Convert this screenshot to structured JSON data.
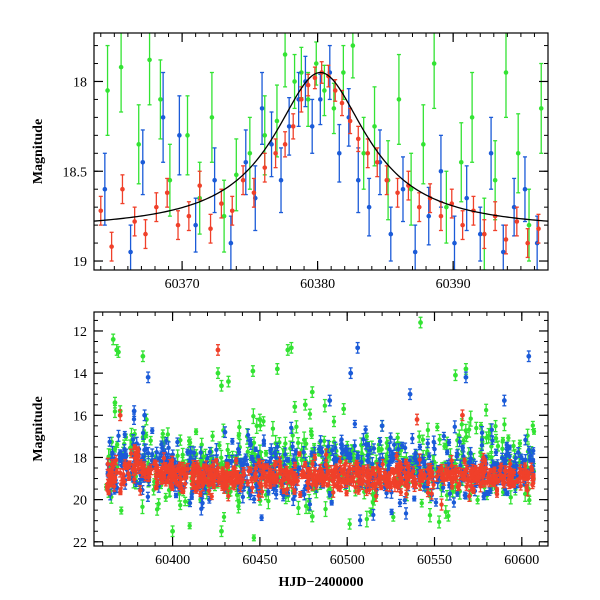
{
  "colors": {
    "green": "#33e333",
    "blue": "#1b5bd8",
    "red": "#f0402a",
    "model": "#000000"
  },
  "chart_data": [
    {
      "type": "scatter",
      "panel": "top",
      "title": "",
      "xlabel": "",
      "ylabel": "Magnitude",
      "xlim": [
        60363.5,
        60397
      ],
      "ylim": [
        19.05,
        17.73
      ],
      "y_inverted": true,
      "x_ticks": [
        60370,
        60380,
        60390
      ],
      "x_tick_labels": [
        "60370",
        "60380",
        "60390"
      ],
      "y_ticks": [
        18,
        18.5,
        19
      ],
      "y_tick_labels": [
        "18",
        "18.5",
        "19"
      ],
      "grid": false,
      "legend": "none",
      "model_curve": {
        "form": "single-lens microlensing",
        "t0": 60380.2,
        "peak_mag": 17.95,
        "baseline_mag": 18.83
      },
      "series": [
        {
          "color_key": "green",
          "points": [
            [
              60364.5,
              18.05,
              0.25
            ],
            [
              60365.5,
              17.92,
              0.25
            ],
            [
              60366.8,
              18.35,
              0.22
            ],
            [
              60367.6,
              17.88,
              0.25
            ],
            [
              60368.4,
              18.1,
              0.22
            ],
            [
              60369.1,
              18.55,
              0.2
            ],
            [
              60370.4,
              18.3,
              0.22
            ],
            [
              60371.3,
              18.65,
              0.2
            ],
            [
              60372.2,
              18.2,
              0.25
            ],
            [
              60373.1,
              18.75,
              0.2
            ],
            [
              60374.0,
              18.52,
              0.2
            ],
            [
              60375.0,
              18.4,
              0.2
            ],
            [
              60376.1,
              18.3,
              0.22
            ],
            [
              60377.0,
              18.22,
              0.2
            ],
            [
              60377.6,
              17.85,
              0.18
            ],
            [
              60378.3,
              18.0,
              0.15
            ],
            [
              60378.8,
              17.95,
              0.14
            ],
            [
              60379.3,
              18.1,
              0.15
            ],
            [
              60379.9,
              17.9,
              0.12
            ],
            [
              60380.5,
              18.05,
              0.14
            ],
            [
              60381.2,
              18.15,
              0.14
            ],
            [
              60381.9,
              17.95,
              0.15
            ],
            [
              60382.6,
              17.8,
              0.18
            ],
            [
              60383.4,
              18.4,
              0.2
            ],
            [
              60384.2,
              18.25,
              0.22
            ],
            [
              60385.2,
              18.55,
              0.22
            ],
            [
              60386.0,
              18.1,
              0.25
            ],
            [
              60386.9,
              18.6,
              0.2
            ],
            [
              60387.8,
              18.35,
              0.22
            ],
            [
              60388.6,
              17.9,
              0.25
            ],
            [
              60389.5,
              18.7,
              0.2
            ],
            [
              60390.6,
              18.45,
              0.22
            ],
            [
              60391.4,
              18.2,
              0.25
            ],
            [
              60392.3,
              18.85,
              0.2
            ],
            [
              60393.1,
              18.55,
              0.22
            ],
            [
              60393.9,
              17.95,
              0.25
            ],
            [
              60394.8,
              18.4,
              0.22
            ],
            [
              60395.6,
              18.8,
              0.2
            ],
            [
              60396.5,
              18.15,
              0.25
            ]
          ]
        },
        {
          "color_key": "blue",
          "points": [
            [
              60364.3,
              18.6,
              0.2
            ],
            [
              60366.2,
              18.95,
              0.15
            ],
            [
              60367.1,
              18.45,
              0.18
            ],
            [
              60368.6,
              18.2,
              0.25
            ],
            [
              60369.8,
              18.3,
              0.22
            ],
            [
              60371.0,
              18.8,
              0.15
            ],
            [
              60372.4,
              18.55,
              0.18
            ],
            [
              60373.6,
              18.9,
              0.15
            ],
            [
              60374.7,
              18.45,
              0.18
            ],
            [
              60375.4,
              18.65,
              0.18
            ],
            [
              60375.9,
              18.15,
              0.2
            ],
            [
              60376.6,
              18.35,
              0.18
            ],
            [
              60377.3,
              18.55,
              0.18
            ],
            [
              60377.9,
              18.25,
              0.16
            ],
            [
              60378.6,
              18.1,
              0.15
            ],
            [
              60379.1,
              18.0,
              0.14
            ],
            [
              60379.6,
              18.25,
              0.15
            ],
            [
              60380.2,
              18.1,
              0.14
            ],
            [
              60380.9,
              17.95,
              0.15
            ],
            [
              60381.6,
              18.4,
              0.16
            ],
            [
              60382.3,
              18.2,
              0.16
            ],
            [
              60383.0,
              18.55,
              0.18
            ],
            [
              60383.8,
              18.7,
              0.16
            ],
            [
              60384.6,
              18.45,
              0.18
            ],
            [
              60385.4,
              18.85,
              0.15
            ],
            [
              60386.3,
              18.6,
              0.18
            ],
            [
              60387.2,
              18.95,
              0.15
            ],
            [
              60388.2,
              18.75,
              0.16
            ],
            [
              60389.1,
              18.5,
              0.2
            ],
            [
              60390.1,
              18.9,
              0.15
            ],
            [
              60391.0,
              18.65,
              0.18
            ],
            [
              60392.0,
              18.85,
              0.15
            ],
            [
              60392.8,
              18.4,
              0.2
            ],
            [
              60393.7,
              18.95,
              0.15
            ],
            [
              60394.5,
              18.7,
              0.16
            ],
            [
              60395.3,
              18.6,
              0.18
            ],
            [
              60396.2,
              18.9,
              0.15
            ]
          ]
        },
        {
          "color_key": "red",
          "points": [
            [
              60364.0,
              18.72,
              0.08
            ],
            [
              60364.8,
              18.92,
              0.08
            ],
            [
              60365.6,
              18.6,
              0.08
            ],
            [
              60366.5,
              18.78,
              0.08
            ],
            [
              60367.3,
              18.85,
              0.08
            ],
            [
              60368.1,
              18.7,
              0.08
            ],
            [
              60368.9,
              18.62,
              0.08
            ],
            [
              60369.7,
              18.8,
              0.08
            ],
            [
              60370.5,
              18.75,
              0.08
            ],
            [
              60371.3,
              18.58,
              0.08
            ],
            [
              60372.1,
              18.82,
              0.08
            ],
            [
              60372.9,
              18.68,
              0.08
            ],
            [
              60373.7,
              18.72,
              0.08
            ],
            [
              60374.5,
              18.55,
              0.08
            ],
            [
              60375.3,
              18.62,
              0.08
            ],
            [
              60376.1,
              18.48,
              0.08
            ],
            [
              60376.9,
              18.4,
              0.08
            ],
            [
              60377.6,
              18.35,
              0.07
            ],
            [
              60378.2,
              18.25,
              0.07
            ],
            [
              60378.8,
              18.1,
              0.07
            ],
            [
              60379.3,
              18.02,
              0.06
            ],
            [
              60379.8,
              17.98,
              0.06
            ],
            [
              60380.3,
              17.95,
              0.06
            ],
            [
              60380.8,
              17.97,
              0.06
            ],
            [
              60381.3,
              18.05,
              0.06
            ],
            [
              60381.8,
              18.12,
              0.07
            ],
            [
              60382.4,
              18.22,
              0.07
            ],
            [
              60383.0,
              18.32,
              0.07
            ],
            [
              60383.7,
              18.4,
              0.08
            ],
            [
              60384.4,
              18.45,
              0.08
            ],
            [
              60385.1,
              18.55,
              0.08
            ],
            [
              60385.9,
              18.62,
              0.08
            ],
            [
              60386.7,
              18.58,
              0.08
            ],
            [
              60387.5,
              18.7,
              0.08
            ],
            [
              60388.3,
              18.65,
              0.08
            ],
            [
              60389.1,
              18.75,
              0.08
            ],
            [
              60389.9,
              18.68,
              0.08
            ],
            [
              60390.7,
              18.8,
              0.08
            ],
            [
              60391.5,
              18.72,
              0.08
            ],
            [
              60392.3,
              18.85,
              0.08
            ],
            [
              60393.1,
              18.75,
              0.08
            ],
            [
              60393.9,
              18.88,
              0.08
            ],
            [
              60394.7,
              18.78,
              0.08
            ],
            [
              60395.5,
              18.9,
              0.08
            ],
            [
              60396.3,
              18.82,
              0.08
            ]
          ]
        }
      ]
    },
    {
      "type": "scatter",
      "panel": "bottom",
      "title": "",
      "xlabel": "HJD−2400000",
      "ylabel": "Magnitude",
      "xlim": [
        60355,
        60615
      ],
      "ylim": [
        22.2,
        11.1
      ],
      "y_inverted": true,
      "x_ticks": [
        60400,
        60450,
        60500,
        60550,
        60600
      ],
      "x_tick_labels": [
        "60400",
        "60450",
        "60500",
        "60550",
        "60600"
      ],
      "y_ticks": [
        12,
        14,
        16,
        18,
        20,
        22
      ],
      "y_tick_labels": [
        "12",
        "14",
        "16",
        "18",
        "20",
        "22"
      ],
      "grid": false,
      "legend": "none",
      "outlier_points": [
        {
          "color_key": "green",
          "points": [
            [
              60366,
              12.4
            ],
            [
              60368,
              12.9
            ],
            [
              60369,
              13.0
            ],
            [
              60383,
              13.2
            ],
            [
              60385,
              16.2
            ],
            [
              60367,
              15.4
            ],
            [
              60370,
              15.8
            ],
            [
              60426,
              14.0
            ],
            [
              60428,
              14.6
            ],
            [
              60432,
              14.4
            ],
            [
              60446,
              13.9
            ],
            [
              60460,
              13.8
            ],
            [
              60466,
              12.9
            ],
            [
              60468,
              12.8
            ],
            [
              60470,
              15.6
            ],
            [
              60476,
              15.5
            ],
            [
              60480,
              14.9
            ],
            [
              60542,
              11.6
            ],
            [
              60562,
              14.1
            ],
            [
              60568,
              13.8
            ],
            [
              60450,
              16.2
            ],
            [
              60498,
              15.7
            ],
            [
              60520,
              16.5
            ],
            [
              60400,
              21.5
            ],
            [
              60428,
              21.5
            ],
            [
              60480,
              20.8
            ]
          ]
        },
        {
          "color_key": "blue",
          "points": [
            [
              60386,
              14.2
            ],
            [
              60378,
              15.8
            ],
            [
              60384,
              16.0
            ],
            [
              60490,
              15.3
            ],
            [
              60502,
              14.0
            ],
            [
              60506,
              12.8
            ],
            [
              60536,
              15.0
            ],
            [
              60568,
              14.2
            ],
            [
              60590,
              15.3
            ],
            [
              60604,
              13.2
            ],
            [
              60520,
              16.5
            ],
            [
              60430,
              16.8
            ]
          ]
        },
        {
          "color_key": "red",
          "points": [
            [
              60370,
              16.0
            ],
            [
              60426,
              12.9
            ],
            [
              60540,
              16.2
            ],
            [
              60566,
              16.0
            ]
          ]
        }
      ]
    }
  ]
}
